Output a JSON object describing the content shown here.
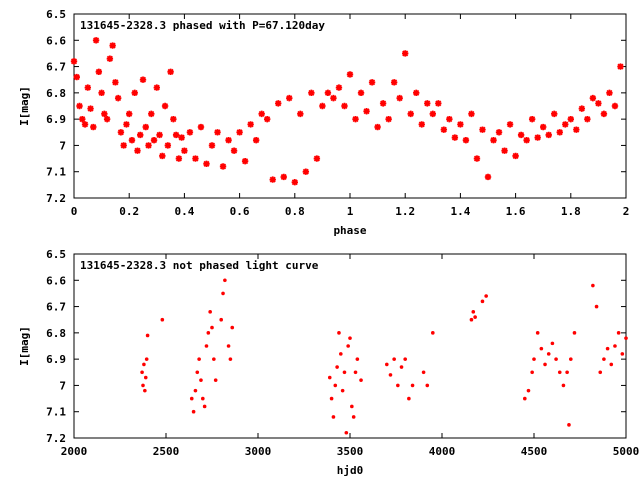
{
  "chart_data": [
    {
      "type": "scatter",
      "title": "131645-2328.3 phased with P=67.120day",
      "xlabel": "phase",
      "ylabel": "I[mag]",
      "xlim": [
        0,
        2
      ],
      "ylim": [
        7.2,
        6.5
      ],
      "y_inverted": true,
      "xticks": [
        "0",
        "0.2",
        "0.4",
        "0.6",
        "0.8",
        "1",
        "1.2",
        "1.4",
        "1.6",
        "1.8",
        "2"
      ],
      "yticks": [
        "6.5",
        "6.6",
        "6.7",
        "6.8",
        "6.9",
        "7",
        "7.1",
        "7.2"
      ],
      "marker": "star",
      "color": "#ff0000",
      "grid": false,
      "points": [
        [
          0.0,
          6.68
        ],
        [
          0.01,
          6.74
        ],
        [
          0.02,
          6.85
        ],
        [
          0.03,
          6.9
        ],
        [
          0.04,
          6.92
        ],
        [
          0.05,
          6.78
        ],
        [
          0.06,
          6.86
        ],
        [
          0.07,
          6.93
        ],
        [
          0.08,
          6.6
        ],
        [
          0.09,
          6.72
        ],
        [
          0.1,
          6.8
        ],
        [
          0.11,
          6.88
        ],
        [
          0.12,
          6.9
        ],
        [
          0.13,
          6.67
        ],
        [
          0.14,
          6.62
        ],
        [
          0.15,
          6.76
        ],
        [
          0.16,
          6.82
        ],
        [
          0.17,
          6.95
        ],
        [
          0.18,
          7.0
        ],
        [
          0.19,
          6.92
        ],
        [
          0.2,
          6.88
        ],
        [
          0.21,
          6.98
        ],
        [
          0.22,
          6.8
        ],
        [
          0.23,
          7.02
        ],
        [
          0.24,
          6.96
        ],
        [
          0.25,
          6.75
        ],
        [
          0.26,
          6.93
        ],
        [
          0.27,
          7.0
        ],
        [
          0.28,
          6.88
        ],
        [
          0.29,
          6.98
        ],
        [
          0.3,
          6.78
        ],
        [
          0.31,
          6.96
        ],
        [
          0.32,
          7.04
        ],
        [
          0.33,
          6.85
        ],
        [
          0.34,
          7.0
        ],
        [
          0.35,
          6.72
        ],
        [
          0.36,
          6.9
        ],
        [
          0.37,
          6.96
        ],
        [
          0.38,
          7.05
        ],
        [
          0.39,
          6.97
        ],
        [
          0.4,
          7.02
        ],
        [
          0.42,
          6.95
        ],
        [
          0.44,
          7.05
        ],
        [
          0.46,
          6.93
        ],
        [
          0.48,
          7.07
        ],
        [
          0.5,
          7.0
        ],
        [
          0.52,
          6.95
        ],
        [
          0.54,
          7.08
        ],
        [
          0.56,
          6.98
        ],
        [
          0.58,
          7.02
        ],
        [
          0.6,
          6.95
        ],
        [
          0.62,
          7.06
        ],
        [
          0.64,
          6.92
        ],
        [
          0.66,
          6.98
        ],
        [
          0.68,
          6.88
        ],
        [
          0.7,
          6.9
        ],
        [
          0.72,
          7.13
        ],
        [
          0.74,
          6.84
        ],
        [
          0.76,
          7.12
        ],
        [
          0.78,
          6.82
        ],
        [
          0.8,
          7.14
        ],
        [
          0.82,
          6.88
        ],
        [
          0.84,
          7.1
        ],
        [
          0.86,
          6.8
        ],
        [
          0.88,
          7.05
        ],
        [
          0.9,
          6.85
        ],
        [
          0.92,
          6.8
        ],
        [
          0.94,
          6.82
        ],
        [
          0.96,
          6.78
        ],
        [
          0.98,
          6.85
        ],
        [
          1.0,
          6.73
        ],
        [
          1.02,
          6.9
        ],
        [
          1.04,
          6.8
        ],
        [
          1.06,
          6.87
        ],
        [
          1.08,
          6.76
        ],
        [
          1.1,
          6.93
        ],
        [
          1.12,
          6.84
        ],
        [
          1.14,
          6.9
        ],
        [
          1.16,
          6.76
        ],
        [
          1.18,
          6.82
        ],
        [
          1.2,
          6.65
        ],
        [
          1.22,
          6.88
        ],
        [
          1.24,
          6.8
        ],
        [
          1.26,
          6.92
        ],
        [
          1.28,
          6.84
        ],
        [
          1.3,
          6.88
        ],
        [
          1.32,
          6.84
        ],
        [
          1.34,
          6.94
        ],
        [
          1.36,
          6.9
        ],
        [
          1.38,
          6.97
        ],
        [
          1.4,
          6.92
        ],
        [
          1.42,
          6.98
        ],
        [
          1.44,
          6.88
        ],
        [
          1.46,
          7.05
        ],
        [
          1.48,
          6.94
        ],
        [
          1.5,
          7.12
        ],
        [
          1.52,
          6.98
        ],
        [
          1.54,
          6.95
        ],
        [
          1.56,
          7.02
        ],
        [
          1.58,
          6.92
        ],
        [
          1.6,
          7.04
        ],
        [
          1.62,
          6.96
        ],
        [
          1.64,
          6.98
        ],
        [
          1.66,
          6.9
        ],
        [
          1.68,
          6.97
        ],
        [
          1.7,
          6.93
        ],
        [
          1.72,
          6.96
        ],
        [
          1.74,
          6.88
        ],
        [
          1.76,
          6.95
        ],
        [
          1.78,
          6.92
        ],
        [
          1.8,
          6.9
        ],
        [
          1.82,
          6.94
        ],
        [
          1.84,
          6.86
        ],
        [
          1.86,
          6.9
        ],
        [
          1.88,
          6.82
        ],
        [
          1.9,
          6.84
        ],
        [
          1.92,
          6.88
        ],
        [
          1.94,
          6.8
        ],
        [
          1.96,
          6.85
        ],
        [
          1.98,
          6.7
        ]
      ]
    },
    {
      "type": "scatter",
      "title": "131645-2328.3 not phased light curve",
      "xlabel": "hjd0",
      "ylabel": "I[mag]",
      "xlim": [
        2000,
        5000
      ],
      "ylim": [
        7.2,
        6.5
      ],
      "y_inverted": true,
      "xticks": [
        "2000",
        "2500",
        "3000",
        "3500",
        "4000",
        "4500",
        "5000"
      ],
      "yticks": [
        "6.5",
        "6.6",
        "6.7",
        "6.8",
        "6.9",
        "7",
        "7.1",
        "7.2"
      ],
      "marker": "dot",
      "color": "#ff0000",
      "grid": false,
      "points": [
        [
          2370,
          6.95
        ],
        [
          2375,
          7.0
        ],
        [
          2380,
          6.92
        ],
        [
          2385,
          7.02
        ],
        [
          2390,
          6.97
        ],
        [
          2395,
          6.9
        ],
        [
          2400,
          6.81
        ],
        [
          2480,
          6.75
        ],
        [
          2640,
          7.05
        ],
        [
          2650,
          7.1
        ],
        [
          2660,
          7.02
        ],
        [
          2670,
          6.95
        ],
        [
          2680,
          6.9
        ],
        [
          2690,
          6.98
        ],
        [
          2700,
          7.05
        ],
        [
          2710,
          7.08
        ],
        [
          2720,
          6.85
        ],
        [
          2730,
          6.8
        ],
        [
          2740,
          6.72
        ],
        [
          2750,
          6.78
        ],
        [
          2760,
          6.9
        ],
        [
          2770,
          6.98
        ],
        [
          2800,
          6.75
        ],
        [
          2810,
          6.65
        ],
        [
          2820,
          6.6
        ],
        [
          2840,
          6.85
        ],
        [
          2850,
          6.9
        ],
        [
          2860,
          6.78
        ],
        [
          3390,
          6.97
        ],
        [
          3400,
          7.05
        ],
        [
          3410,
          7.12
        ],
        [
          3420,
          7.0
        ],
        [
          3430,
          6.93
        ],
        [
          3440,
          6.8
        ],
        [
          3450,
          6.88
        ],
        [
          3460,
          7.02
        ],
        [
          3470,
          6.95
        ],
        [
          3480,
          7.18
        ],
        [
          3490,
          6.85
        ],
        [
          3500,
          6.82
        ],
        [
          3510,
          7.08
        ],
        [
          3520,
          7.12
        ],
        [
          3530,
          6.95
        ],
        [
          3540,
          6.9
        ],
        [
          3560,
          6.98
        ],
        [
          3700,
          6.92
        ],
        [
          3720,
          6.96
        ],
        [
          3740,
          6.9
        ],
        [
          3760,
          7.0
        ],
        [
          3780,
          6.93
        ],
        [
          3800,
          6.9
        ],
        [
          3820,
          7.05
        ],
        [
          3840,
          7.0
        ],
        [
          3900,
          6.95
        ],
        [
          3920,
          7.0
        ],
        [
          3950,
          6.8
        ],
        [
          4160,
          6.75
        ],
        [
          4170,
          6.72
        ],
        [
          4180,
          6.74
        ],
        [
          4220,
          6.68
        ],
        [
          4240,
          6.66
        ],
        [
          4450,
          7.05
        ],
        [
          4470,
          7.02
        ],
        [
          4490,
          6.95
        ],
        [
          4500,
          6.9
        ],
        [
          4520,
          6.8
        ],
        [
          4540,
          6.86
        ],
        [
          4560,
          6.92
        ],
        [
          4580,
          6.88
        ],
        [
          4600,
          6.84
        ],
        [
          4620,
          6.9
        ],
        [
          4640,
          6.95
        ],
        [
          4660,
          7.0
        ],
        [
          4680,
          6.95
        ],
        [
          4690,
          7.15
        ],
        [
          4700,
          6.9
        ],
        [
          4720,
          6.8
        ],
        [
          4820,
          6.62
        ],
        [
          4840,
          6.7
        ],
        [
          4860,
          6.95
        ],
        [
          4880,
          6.9
        ],
        [
          4900,
          6.86
        ],
        [
          4920,
          6.92
        ],
        [
          4940,
          6.85
        ],
        [
          4960,
          6.8
        ],
        [
          4980,
          6.88
        ],
        [
          5000,
          6.82
        ]
      ]
    }
  ]
}
